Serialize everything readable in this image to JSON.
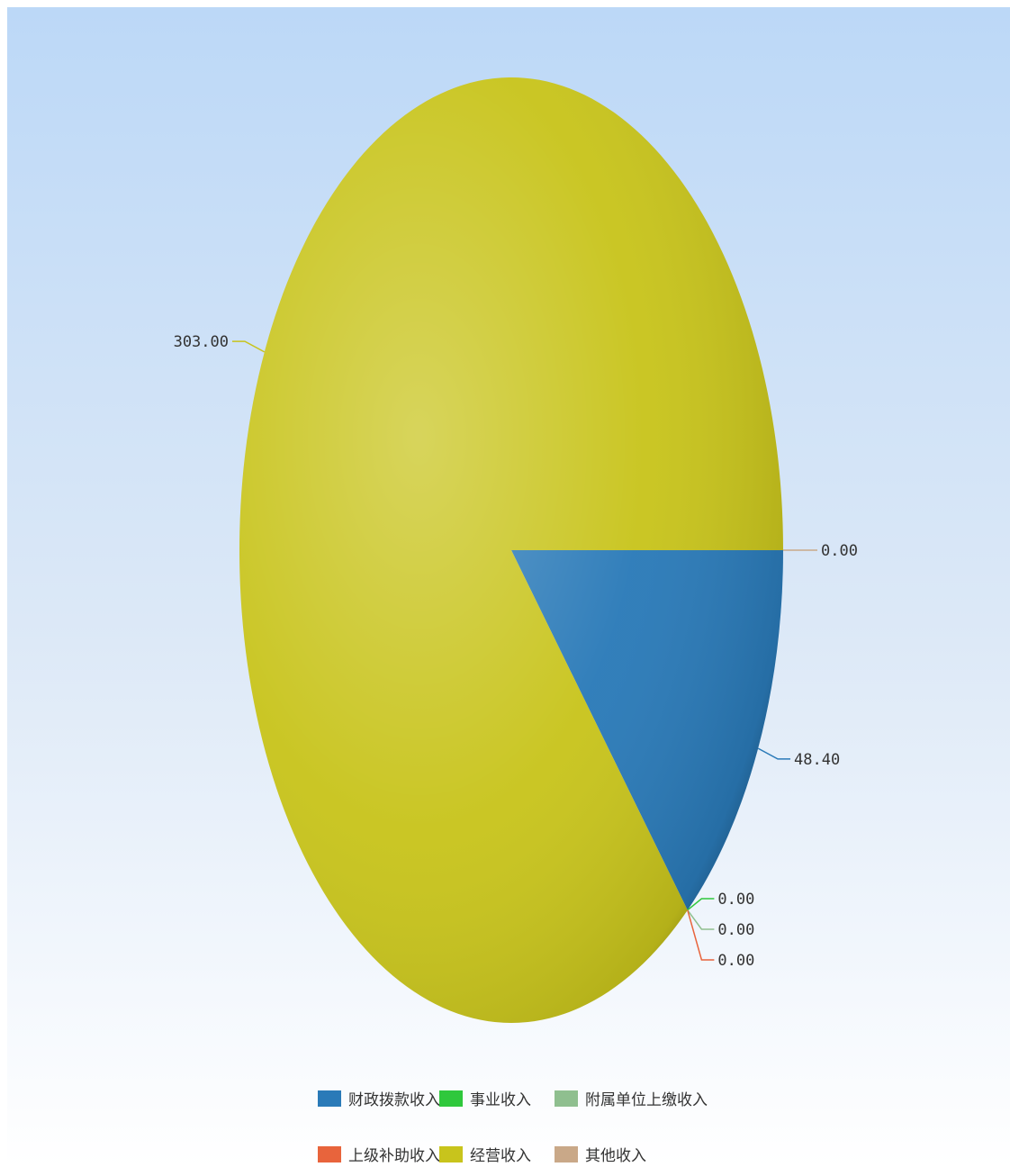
{
  "chart_data": {
    "type": "pie",
    "slices": [
      {
        "label": "财政拨款收入",
        "value": 48.4,
        "display": "48.40",
        "color": "#2a7ab8"
      },
      {
        "label": "事业收入",
        "value": 0.0,
        "display": "0.00",
        "color": "#2fc83c"
      },
      {
        "label": "附属单位上缴收入",
        "value": 0.0,
        "display": "0.00",
        "color": "#8fbf8f"
      },
      {
        "label": "上级补助收入",
        "value": 0.0,
        "display": "0.00",
        "color": "#e8643c"
      },
      {
        "label": "经营收入",
        "value": 303.0,
        "display": "303.00",
        "color": "#c8c41c"
      },
      {
        "label": "其他收入",
        "value": 0.0,
        "display": "0.00",
        "color": "#c9a888"
      }
    ],
    "legend_position": "bottom"
  }
}
